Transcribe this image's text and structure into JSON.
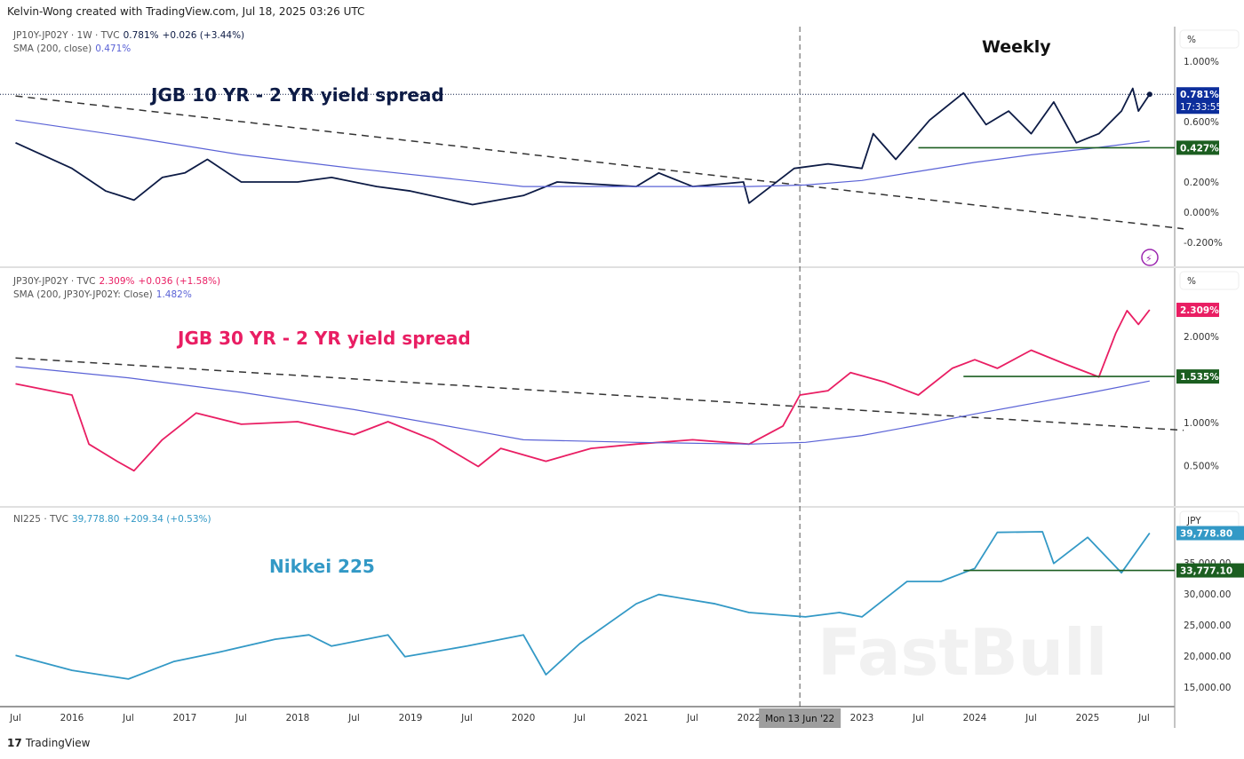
{
  "credit": "Kelvin-Wong created with TradingView.com, Jul 18, 2025 03:26 UTC",
  "footer": {
    "logo": "17",
    "brand": "TradingView"
  },
  "watermark": "FastBull",
  "colors": {
    "spread10": "#0d1b45",
    "spread30": "#e91e63",
    "nikkei": "#3399c6",
    "sma": "#5a62d6",
    "support": "#1b5e20",
    "trend": "#333333",
    "last10": "#0d2e9c"
  },
  "crosshair": {
    "time": 2022.45,
    "label": "Mon 13 Jun '22"
  },
  "panels": [
    {
      "legend": {
        "symbol": "JP10Y-JP02Y · 1W · TVC",
        "last": "0.781%",
        "change": "+0.026 (+3.44%)",
        "sma_label": "SMA (200, close)",
        "sma_value": "0.471%"
      },
      "title": "JGB 10 YR - 2 YR yield spread",
      "annotation": "Weekly",
      "unit": "%",
      "last_label": "0.781%",
      "countdown": "17:33:55",
      "support_label": "0.427%"
    },
    {
      "legend": {
        "symbol": "JP30Y-JP02Y · TVC",
        "last": "2.309%",
        "change": "+0.036 (+1.58%)",
        "sma_label": "SMA (200, JP30Y-JP02Y: Close)",
        "sma_value": "1.482%"
      },
      "title": "JGB 30 YR - 2 YR yield spread",
      "unit": "%",
      "last_label": "2.309%",
      "support_label": "1.535%"
    },
    {
      "legend": {
        "symbol": "NI225 · TVC",
        "last": "39,778.80",
        "change": "+209.34 (+0.53%)"
      },
      "title": "Nikkei 225",
      "unit": "JPY",
      "last_label": "39,778.80",
      "support_label": "33,777.10"
    }
  ],
  "chart_data": [
    {
      "type": "line",
      "ylim": [
        -0.3,
        1.15
      ],
      "yticks": [
        "1.000%",
        "0.600%",
        "0.200%",
        "0.000%",
        "-0.200%"
      ],
      "ytick_values": [
        1.0,
        0.6,
        0.2,
        0.0,
        -0.2
      ],
      "series": [
        {
          "x": [
            2015.5,
            2016,
            2016.3,
            2016.55,
            2016.8,
            2017,
            2017.2,
            2017.5,
            2018,
            2018.3,
            2018.7,
            2019,
            2019.55,
            2020,
            2020.3,
            2021,
            2021.2,
            2021.5,
            2021.95,
            2022,
            2022.4,
            2022.7,
            2023,
            2023.1,
            2023.3,
            2023.6,
            2023.9,
            2024.1,
            2024.3,
            2024.5,
            2024.7,
            2024.9,
            2025.1,
            2025.3,
            2025.4,
            2025.45,
            2025.55
          ],
          "y": [
            0.46,
            0.29,
            0.14,
            0.08,
            0.23,
            0.26,
            0.35,
            0.2,
            0.2,
            0.23,
            0.17,
            0.14,
            0.05,
            0.11,
            0.2,
            0.17,
            0.26,
            0.17,
            0.2,
            0.06,
            0.29,
            0.32,
            0.29,
            0.52,
            0.35,
            0.61,
            0.79,
            0.58,
            0.67,
            0.52,
            0.73,
            0.46,
            0.52,
            0.67,
            0.82,
            0.67,
            0.781
          ]
        },
        {
          "name": "SMA (200, close)",
          "x": [
            2015.5,
            2016.5,
            2017.5,
            2018.5,
            2019.5,
            2020,
            2021,
            2022,
            2022.5,
            2023,
            2023.5,
            2024,
            2024.5,
            2025,
            2025.55
          ],
          "y": [
            0.61,
            0.5,
            0.38,
            0.29,
            0.21,
            0.17,
            0.17,
            0.17,
            0.18,
            0.21,
            0.27,
            0.33,
            0.38,
            0.42,
            0.471
          ]
        }
      ],
      "trendline": {
        "x": [
          2015.5,
          2025.85
        ],
        "y": [
          0.77,
          -0.11
        ]
      },
      "support": {
        "x_start": 2023.5,
        "y": 0.427
      }
    },
    {
      "type": "line",
      "ylim": [
        0.05,
        2.7
      ],
      "yticks": [
        "2.000%",
        "1.000%",
        "0.500%"
      ],
      "ytick_values": [
        2.0,
        1.0,
        0.5
      ],
      "series": [
        {
          "x": [
            2015.5,
            2016,
            2016.15,
            2016.4,
            2016.55,
            2016.8,
            2017.1,
            2017.5,
            2018,
            2018.5,
            2018.8,
            2019.2,
            2019.6,
            2019.8,
            2020.2,
            2020.6,
            2021,
            2021.5,
            2022,
            2022.3,
            2022.45,
            2022.7,
            2022.9,
            2023.2,
            2023.5,
            2023.8,
            2024,
            2024.2,
            2024.5,
            2024.8,
            2025.1,
            2025.25,
            2025.35,
            2025.45,
            2025.55
          ],
          "y": [
            1.45,
            1.32,
            0.75,
            0.55,
            0.44,
            0.8,
            1.11,
            0.98,
            1.01,
            0.86,
            1.01,
            0.8,
            0.49,
            0.7,
            0.55,
            0.7,
            0.75,
            0.8,
            0.75,
            0.96,
            1.32,
            1.37,
            1.58,
            1.47,
            1.32,
            1.63,
            1.73,
            1.63,
            1.84,
            1.68,
            1.53,
            2.04,
            2.3,
            2.14,
            2.309
          ]
        },
        {
          "name": "SMA (200, JP30Y-JP02Y: Close)",
          "x": [
            2015.5,
            2016.5,
            2017.5,
            2018.5,
            2019.5,
            2020,
            2021,
            2022,
            2022.5,
            2023,
            2023.5,
            2024,
            2024.5,
            2025,
            2025.55
          ],
          "y": [
            1.65,
            1.52,
            1.35,
            1.15,
            0.92,
            0.8,
            0.77,
            0.75,
            0.77,
            0.85,
            0.97,
            1.1,
            1.22,
            1.34,
            1.482
          ]
        }
      ],
      "trendline": {
        "x": [
          2015.5,
          2025.85
        ],
        "y": [
          1.75,
          0.91
        ]
      },
      "support": {
        "x_start": 2023.9,
        "y": 1.535
      }
    },
    {
      "type": "line",
      "ylim": [
        12000,
        42500
      ],
      "yticks": [
        "35,000.00",
        "30,000.00",
        "25,000.00",
        "20,000.00",
        "15,000.00"
      ],
      "ytick_values": [
        35000,
        30000,
        25000,
        20000,
        15000
      ],
      "series": [
        {
          "x": [
            2015.5,
            2016,
            2016.5,
            2016.9,
            2017.3,
            2017.8,
            2018.1,
            2018.3,
            2018.8,
            2018.95,
            2019.5,
            2020,
            2020.2,
            2020.5,
            2021,
            2021.2,
            2021.7,
            2022,
            2022.5,
            2022.8,
            2023,
            2023.4,
            2023.7,
            2024,
            2024.2,
            2024.6,
            2024.7,
            2025,
            2025.3,
            2025.55
          ],
          "y": [
            20100,
            17700,
            16300,
            19100,
            20600,
            22700,
            23400,
            21600,
            23400,
            19900,
            21600,
            23400,
            17000,
            22000,
            28400,
            29900,
            28400,
            27000,
            26300,
            27000,
            26300,
            32000,
            32000,
            34100,
            39900,
            40000,
            34900,
            39100,
            33400,
            39778.8
          ]
        }
      ],
      "support": {
        "x_start": 2023.9,
        "y": 33777.1
      }
    }
  ],
  "x_axis": {
    "labels": [
      "Jul",
      "2016",
      "Jul",
      "2017",
      "Jul",
      "2018",
      "Jul",
      "2019",
      "Jul",
      "2020",
      "Jul",
      "2021",
      "Jul",
      "2022",
      "2023",
      "Jul",
      "2024",
      "Jul",
      "2025",
      "Jul"
    ],
    "values": [
      2015.5,
      2016,
      2016.5,
      2017,
      2017.5,
      2018,
      2018.5,
      2019,
      2019.5,
      2020,
      2020.5,
      2021,
      2021.5,
      2022,
      2023,
      2023.5,
      2024,
      2024.5,
      2025,
      2025.5
    ]
  }
}
